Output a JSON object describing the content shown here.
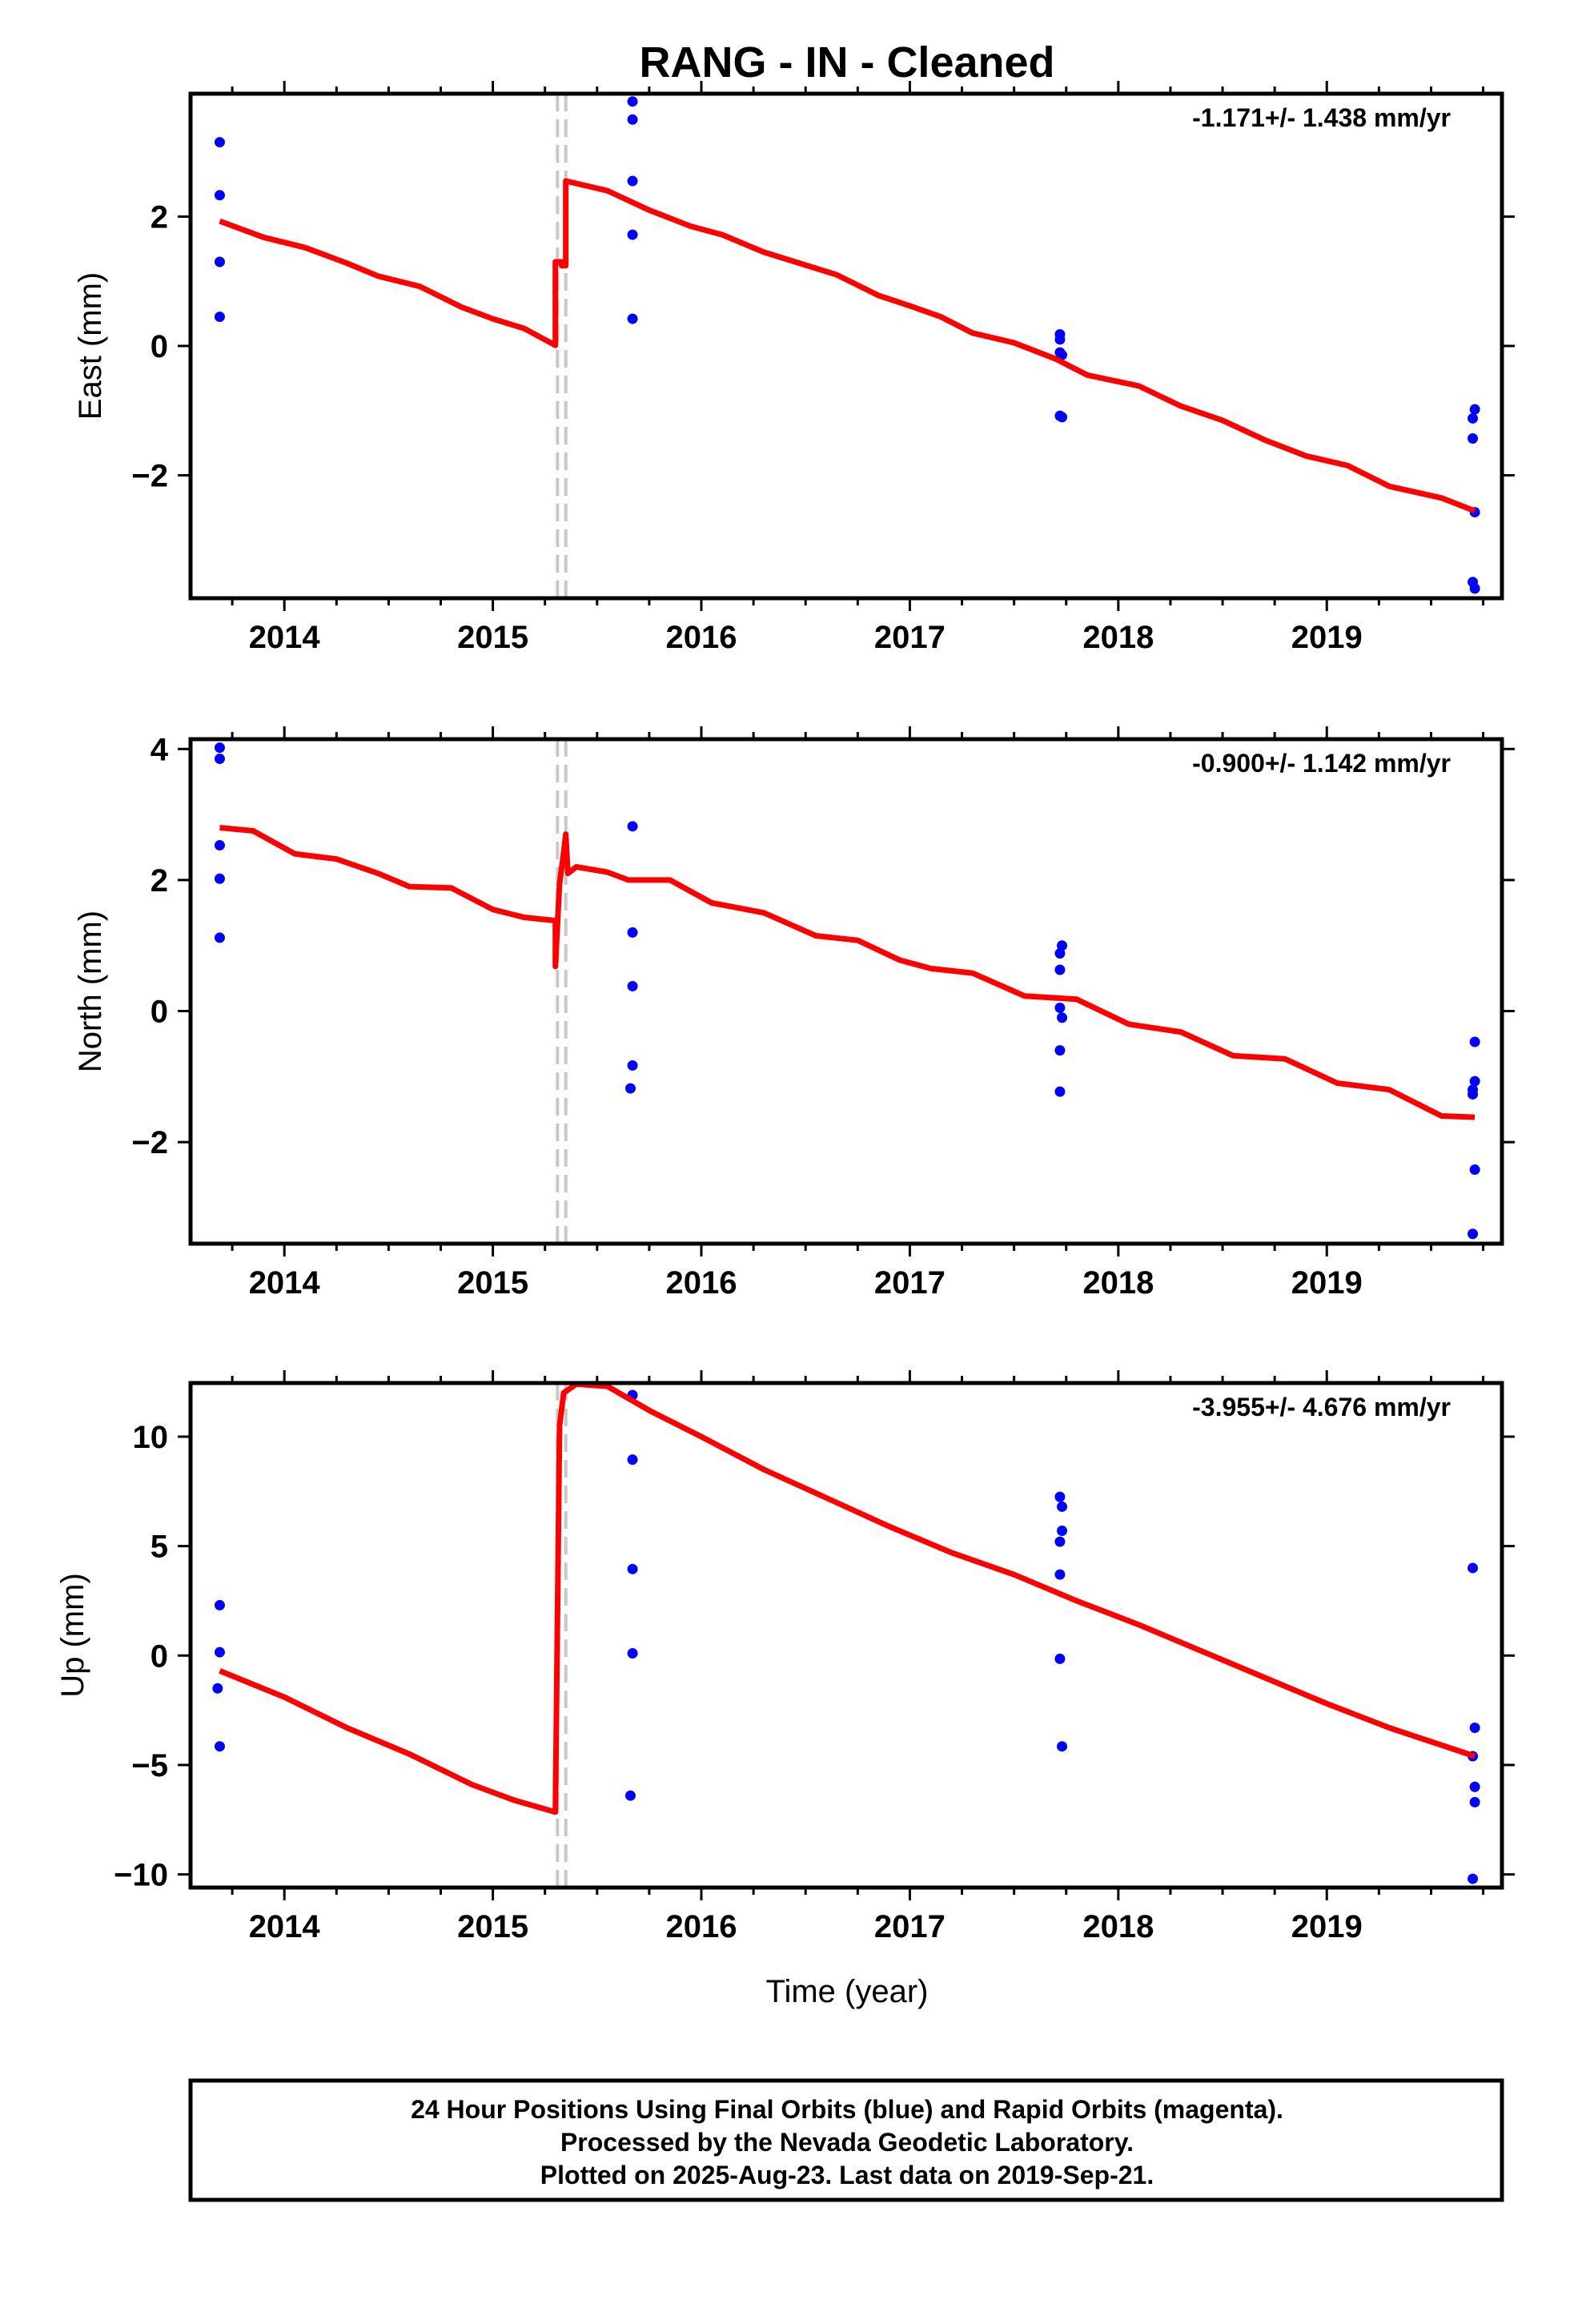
{
  "title": "RANG  - IN - Cleaned",
  "x_axis_label": "Time (year)",
  "footer": {
    "line1": "24 Hour Positions Using Final Orbits (blue) and Rapid Orbits (magenta).",
    "line2": "Processed by the Nevada Geodetic Laboratory.",
    "line3": "Plotted on 2025-Aug-23. Last data on 2019-Sep-21."
  },
  "colors": {
    "points": "#0000ff",
    "model": "#ff0000",
    "event_line": "#c8c8c8",
    "axes": "#000000"
  },
  "chart_data": [
    {
      "type": "scatter",
      "name": "east",
      "ylabel": "East (mm)",
      "rate_text": "-1.171+/- 1.438 mm/yr",
      "xlim": [
        2013.55,
        2019.84
      ],
      "ylim": [
        -3.9,
        3.9
      ],
      "xticks": [
        2014,
        2015,
        2016,
        2017,
        2018,
        2019
      ],
      "xtick_labels": [
        "2014",
        "2015",
        "2016",
        "2017",
        "2018",
        "2019"
      ],
      "yticks": [
        -2,
        0,
        2
      ],
      "ytick_labels": [
        "−2",
        "0",
        "2"
      ],
      "event_lines": [
        2015.31,
        2015.35
      ],
      "points": [
        [
          2013.69,
          3.15
        ],
        [
          2013.69,
          2.33
        ],
        [
          2013.69,
          1.3
        ],
        [
          2013.69,
          0.45
        ],
        [
          2015.67,
          3.78
        ],
        [
          2015.67,
          3.5
        ],
        [
          2015.67,
          2.55
        ],
        [
          2015.67,
          1.72
        ],
        [
          2015.67,
          0.42
        ],
        [
          2017.72,
          0.18
        ],
        [
          2017.72,
          0.1
        ],
        [
          2017.72,
          -0.1
        ],
        [
          2017.73,
          -0.14
        ],
        [
          2017.72,
          -1.08
        ],
        [
          2017.73,
          -1.1
        ],
        [
          2019.71,
          -0.98
        ],
        [
          2019.7,
          -1.12
        ],
        [
          2019.7,
          -1.43
        ],
        [
          2019.71,
          -2.57
        ],
        [
          2019.7,
          -3.65
        ],
        [
          2019.71,
          -3.75
        ]
      ],
      "model": [
        [
          2013.69,
          1.93
        ],
        [
          2013.9,
          1.68
        ],
        [
          2014.1,
          1.52
        ],
        [
          2014.3,
          1.28
        ],
        [
          2014.45,
          1.08
        ],
        [
          2014.65,
          0.92
        ],
        [
          2014.85,
          0.6
        ],
        [
          2015.0,
          0.42
        ],
        [
          2015.15,
          0.27
        ],
        [
          2015.3,
          0.01
        ],
        [
          2015.3,
          1.3
        ],
        [
          2015.33,
          1.3
        ],
        [
          2015.33,
          1.24
        ],
        [
          2015.35,
          1.24
        ],
        [
          2015.35,
          2.55
        ],
        [
          2015.55,
          2.4
        ],
        [
          2015.75,
          2.1
        ],
        [
          2015.95,
          1.85
        ],
        [
          2016.1,
          1.72
        ],
        [
          2016.3,
          1.45
        ],
        [
          2016.45,
          1.3
        ],
        [
          2016.65,
          1.1
        ],
        [
          2016.85,
          0.78
        ],
        [
          2017.0,
          0.62
        ],
        [
          2017.15,
          0.45
        ],
        [
          2017.3,
          0.2
        ],
        [
          2017.5,
          0.05
        ],
        [
          2017.7,
          -0.2
        ],
        [
          2017.85,
          -0.45
        ],
        [
          2018.1,
          -0.62
        ],
        [
          2018.3,
          -0.93
        ],
        [
          2018.5,
          -1.15
        ],
        [
          2018.7,
          -1.45
        ],
        [
          2018.9,
          -1.7
        ],
        [
          2019.1,
          -1.85
        ],
        [
          2019.3,
          -2.17
        ],
        [
          2019.55,
          -2.35
        ],
        [
          2019.71,
          -2.55
        ]
      ]
    },
    {
      "type": "scatter",
      "name": "north",
      "ylabel": "North (mm)",
      "rate_text": "-0.900+/- 1.142 mm/yr",
      "xlim": [
        2013.55,
        2019.84
      ],
      "ylim": [
        -3.55,
        4.15
      ],
      "xticks": [
        2014,
        2015,
        2016,
        2017,
        2018,
        2019
      ],
      "xtick_labels": [
        "2014",
        "2015",
        "2016",
        "2017",
        "2018",
        "2019"
      ],
      "yticks": [
        -2,
        0,
        2,
        4
      ],
      "ytick_labels": [
        "−2",
        "0",
        "2",
        "4"
      ],
      "event_lines": [
        2015.31,
        2015.35
      ],
      "points": [
        [
          2013.69,
          4.02
        ],
        [
          2013.69,
          3.85
        ],
        [
          2013.69,
          2.53
        ],
        [
          2013.69,
          2.02
        ],
        [
          2013.69,
          1.12
        ],
        [
          2015.67,
          2.82
        ],
        [
          2015.67,
          1.2
        ],
        [
          2015.67,
          0.38
        ],
        [
          2015.67,
          -0.83
        ],
        [
          2015.66,
          -1.18
        ],
        [
          2017.73,
          1.0
        ],
        [
          2017.72,
          0.88
        ],
        [
          2017.72,
          0.63
        ],
        [
          2017.72,
          0.05
        ],
        [
          2017.73,
          -0.1
        ],
        [
          2017.72,
          -0.6
        ],
        [
          2017.72,
          -1.23
        ],
        [
          2019.71,
          -0.47
        ],
        [
          2019.71,
          -1.07
        ],
        [
          2019.7,
          -1.2
        ],
        [
          2019.7,
          -1.27
        ],
        [
          2019.71,
          -2.42
        ],
        [
          2019.7,
          -3.4
        ]
      ],
      "model": [
        [
          2013.69,
          2.8
        ],
        [
          2013.85,
          2.75
        ],
        [
          2014.05,
          2.4
        ],
        [
          2014.25,
          2.32
        ],
        [
          2014.45,
          2.1
        ],
        [
          2014.6,
          1.9
        ],
        [
          2014.8,
          1.88
        ],
        [
          2015.0,
          1.55
        ],
        [
          2015.15,
          1.43
        ],
        [
          2015.3,
          1.38
        ],
        [
          2015.3,
          0.68
        ],
        [
          2015.32,
          1.95
        ],
        [
          2015.34,
          2.42
        ],
        [
          2015.35,
          2.7
        ],
        [
          2015.36,
          2.1
        ],
        [
          2015.4,
          2.2
        ],
        [
          2015.55,
          2.12
        ],
        [
          2015.65,
          2.0
        ],
        [
          2015.85,
          2.0
        ],
        [
          2016.05,
          1.65
        ],
        [
          2016.3,
          1.5
        ],
        [
          2016.55,
          1.15
        ],
        [
          2016.75,
          1.08
        ],
        [
          2016.95,
          0.78
        ],
        [
          2017.1,
          0.65
        ],
        [
          2017.3,
          0.58
        ],
        [
          2017.55,
          0.23
        ],
        [
          2017.8,
          0.18
        ],
        [
          2018.05,
          -0.2
        ],
        [
          2018.3,
          -0.32
        ],
        [
          2018.55,
          -0.68
        ],
        [
          2018.8,
          -0.73
        ],
        [
          2019.05,
          -1.1
        ],
        [
          2019.3,
          -1.2
        ],
        [
          2019.55,
          -1.6
        ],
        [
          2019.71,
          -1.62
        ]
      ]
    },
    {
      "type": "scatter",
      "name": "up",
      "ylabel": "Up (mm)",
      "xlabel": "Time (year)",
      "rate_text": "-3.955+/- 4.676 mm/yr",
      "xlim": [
        2013.55,
        2019.84
      ],
      "ylim": [
        -10.6,
        12.45
      ],
      "xticks": [
        2014,
        2015,
        2016,
        2017,
        2018,
        2019
      ],
      "xtick_labels": [
        "2014",
        "2015",
        "2016",
        "2017",
        "2018",
        "2019"
      ],
      "yticks": [
        -10,
        -5,
        0,
        5,
        10
      ],
      "ytick_labels": [
        "−10",
        "−5",
        "0",
        "5",
        "10"
      ],
      "event_lines": [
        2015.31,
        2015.35
      ],
      "points": [
        [
          2013.69,
          2.3
        ],
        [
          2013.69,
          0.15
        ],
        [
          2013.68,
          -1.5
        ],
        [
          2013.69,
          -4.15
        ],
        [
          2015.67,
          11.9
        ],
        [
          2015.67,
          8.95
        ],
        [
          2015.67,
          3.95
        ],
        [
          2015.67,
          0.1
        ],
        [
          2015.66,
          -6.4
        ],
        [
          2017.72,
          7.25
        ],
        [
          2017.73,
          6.8
        ],
        [
          2017.73,
          5.7
        ],
        [
          2017.72,
          5.2
        ],
        [
          2017.72,
          3.7
        ],
        [
          2017.72,
          -0.15
        ],
        [
          2017.73,
          -4.15
        ],
        [
          2019.7,
          4.0
        ],
        [
          2019.71,
          -3.3
        ],
        [
          2019.7,
          -4.6
        ],
        [
          2019.71,
          -6.0
        ],
        [
          2019.71,
          -6.7
        ],
        [
          2019.7,
          -10.2
        ]
      ],
      "model": [
        [
          2013.69,
          -0.7
        ],
        [
          2014.0,
          -1.9
        ],
        [
          2014.3,
          -3.3
        ],
        [
          2014.6,
          -4.5
        ],
        [
          2014.9,
          -5.9
        ],
        [
          2015.1,
          -6.6
        ],
        [
          2015.3,
          -7.15
        ],
        [
          2015.32,
          10.5
        ],
        [
          2015.34,
          12.0
        ],
        [
          2015.4,
          12.4
        ],
        [
          2015.55,
          12.3
        ],
        [
          2015.75,
          11.2
        ],
        [
          2016.0,
          10.0
        ],
        [
          2016.3,
          8.5
        ],
        [
          2016.6,
          7.2
        ],
        [
          2016.9,
          5.9
        ],
        [
          2017.2,
          4.7
        ],
        [
          2017.5,
          3.7
        ],
        [
          2017.8,
          2.5
        ],
        [
          2018.1,
          1.4
        ],
        [
          2018.4,
          0.2
        ],
        [
          2018.7,
          -1.0
        ],
        [
          2019.0,
          -2.2
        ],
        [
          2019.3,
          -3.3
        ],
        [
          2019.71,
          -4.6
        ]
      ]
    }
  ]
}
